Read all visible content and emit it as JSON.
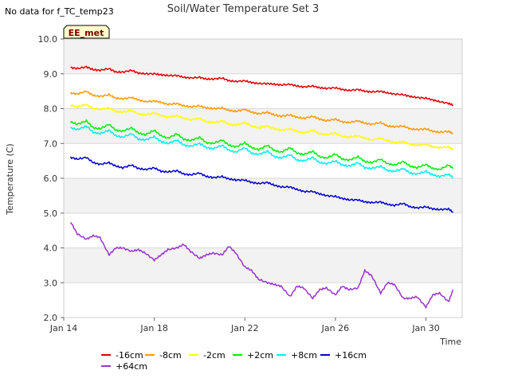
{
  "no_data_text": "No data for f_TC_temp23",
  "site_label": "EE_met",
  "colors": {
    "plot_bg_band": "#f2f2f2",
    "grid": "#d9d9d9",
    "site_tag_fill": "#ffffcc"
  },
  "chart_data": {
    "type": "line",
    "title": "Soil/Water Temperature Set 3",
    "xlabel": "Time",
    "ylabel": "Temperature (C)",
    "ylim": [
      2.0,
      10.0
    ],
    "yticks": [
      "2.0",
      "3.0",
      "4.0",
      "5.0",
      "6.0",
      "7.0",
      "8.0",
      "9.0",
      "10.0"
    ],
    "xlim": [
      "Jan 14",
      "Jan 31.6"
    ],
    "xticks": [
      "Jan 14",
      "Jan 18",
      "Jan 22",
      "Jan 26",
      "Jan 30"
    ],
    "grid": true,
    "legend_position": "bottom",
    "x_days": [
      14.3,
      14.6,
      15.0,
      15.3,
      15.6,
      16.0,
      16.3,
      16.6,
      17.0,
      17.3,
      17.6,
      18.0,
      18.3,
      18.6,
      19.0,
      19.3,
      19.6,
      20.0,
      20.3,
      20.6,
      21.0,
      21.3,
      21.6,
      22.0,
      22.3,
      22.6,
      23.0,
      23.3,
      23.6,
      24.0,
      24.3,
      24.6,
      25.0,
      25.3,
      25.6,
      26.0,
      26.3,
      26.6,
      27.0,
      27.3,
      27.6,
      28.0,
      28.3,
      28.6,
      29.0,
      29.3,
      29.6,
      30.0,
      30.3,
      30.6,
      31.0,
      31.2
    ],
    "series": [
      {
        "name": "-16cm",
        "color": "#dd0000",
        "values": [
          9.18,
          9.15,
          9.2,
          9.12,
          9.1,
          9.15,
          9.05,
          9.05,
          9.1,
          9.02,
          9.0,
          9.0,
          8.97,
          8.95,
          8.95,
          8.9,
          8.88,
          8.9,
          8.85,
          8.85,
          8.88,
          8.8,
          8.78,
          8.8,
          8.75,
          8.72,
          8.72,
          8.7,
          8.68,
          8.7,
          8.65,
          8.62,
          8.65,
          8.6,
          8.58,
          8.6,
          8.55,
          8.52,
          8.55,
          8.5,
          8.48,
          8.5,
          8.45,
          8.42,
          8.4,
          8.35,
          8.32,
          8.3,
          8.25,
          8.2,
          8.15,
          8.1
        ]
      },
      {
        "name": "-8cm",
        "color": "#ff9900",
        "values": [
          8.45,
          8.42,
          8.5,
          8.38,
          8.35,
          8.4,
          8.3,
          8.28,
          8.32,
          8.25,
          8.2,
          8.22,
          8.18,
          8.12,
          8.15,
          8.08,
          8.05,
          8.08,
          8.02,
          8.0,
          8.02,
          7.95,
          7.92,
          7.98,
          7.9,
          7.85,
          7.9,
          7.82,
          7.78,
          7.82,
          7.75,
          7.72,
          7.78,
          7.7,
          7.65,
          7.7,
          7.62,
          7.6,
          7.65,
          7.58,
          7.55,
          7.6,
          7.5,
          7.48,
          7.5,
          7.42,
          7.4,
          7.42,
          7.35,
          7.32,
          7.35,
          7.28
        ]
      },
      {
        "name": "-2cm",
        "color": "#ffff00",
        "values": [
          8.1,
          8.05,
          8.12,
          8.0,
          7.98,
          8.02,
          7.92,
          7.9,
          7.95,
          7.85,
          7.82,
          7.88,
          7.8,
          7.75,
          7.8,
          7.72,
          7.68,
          7.72,
          7.62,
          7.6,
          7.65,
          7.55,
          7.52,
          7.6,
          7.5,
          7.45,
          7.5,
          7.42,
          7.38,
          7.42,
          7.35,
          7.3,
          7.38,
          7.28,
          7.25,
          7.3,
          7.2,
          7.18,
          7.22,
          7.15,
          7.1,
          7.15,
          7.08,
          7.02,
          7.05,
          6.98,
          6.95,
          6.98,
          6.9,
          6.88,
          6.9,
          6.82
        ]
      },
      {
        "name": "+2cm",
        "color": "#00ee00",
        "values": [
          7.62,
          7.55,
          7.65,
          7.45,
          7.42,
          7.55,
          7.38,
          7.35,
          7.45,
          7.3,
          7.25,
          7.38,
          7.22,
          7.15,
          7.28,
          7.12,
          7.08,
          7.18,
          7.02,
          7.0,
          7.1,
          6.95,
          6.9,
          7.02,
          6.88,
          6.82,
          6.95,
          6.8,
          6.75,
          6.88,
          6.72,
          6.68,
          6.78,
          6.62,
          6.58,
          6.7,
          6.55,
          6.52,
          6.62,
          6.48,
          6.45,
          6.55,
          6.42,
          6.38,
          6.48,
          6.35,
          6.3,
          6.4,
          6.28,
          6.25,
          6.38,
          6.28
        ]
      },
      {
        "name": "+8cm",
        "color": "#00eeee",
        "values": [
          7.45,
          7.4,
          7.5,
          7.32,
          7.28,
          7.38,
          7.22,
          7.18,
          7.28,
          7.12,
          7.1,
          7.2,
          7.05,
          7.0,
          7.1,
          6.95,
          6.92,
          7.0,
          6.88,
          6.85,
          6.95,
          6.8,
          6.75,
          6.88,
          6.72,
          6.68,
          6.78,
          6.62,
          6.58,
          6.68,
          6.52,
          6.5,
          6.6,
          6.45,
          6.42,
          6.5,
          6.38,
          6.35,
          6.45,
          6.3,
          6.28,
          6.35,
          6.22,
          6.2,
          6.28,
          6.15,
          6.12,
          6.2,
          6.1,
          6.05,
          6.12,
          6.02
        ]
      },
      {
        "name": "+16cm",
        "color": "#0000cc",
        "values": [
          6.6,
          6.55,
          6.6,
          6.45,
          6.4,
          6.45,
          6.35,
          6.3,
          6.38,
          6.28,
          6.25,
          6.3,
          6.2,
          6.18,
          6.22,
          6.12,
          6.1,
          6.15,
          6.05,
          6.02,
          6.05,
          5.98,
          5.95,
          5.95,
          5.88,
          5.85,
          5.88,
          5.8,
          5.75,
          5.75,
          5.68,
          5.62,
          5.62,
          5.55,
          5.5,
          5.48,
          5.42,
          5.38,
          5.38,
          5.32,
          5.3,
          5.32,
          5.25,
          5.22,
          5.28,
          5.18,
          5.15,
          5.18,
          5.12,
          5.1,
          5.12,
          5.02
        ]
      },
      {
        "name": "+64cm",
        "color": "#9933cc",
        "values": [
          4.75,
          4.4,
          4.25,
          4.35,
          4.3,
          3.8,
          4.0,
          4.0,
          3.9,
          3.95,
          3.85,
          3.65,
          3.8,
          3.95,
          4.0,
          4.1,
          3.9,
          3.7,
          3.8,
          3.85,
          3.8,
          4.05,
          3.85,
          3.45,
          3.35,
          3.1,
          3.0,
          2.95,
          2.9,
          2.6,
          2.9,
          2.85,
          2.55,
          2.8,
          2.85,
          2.65,
          2.9,
          2.8,
          2.85,
          3.35,
          3.2,
          2.7,
          3.0,
          2.95,
          2.55,
          2.55,
          2.6,
          2.3,
          2.65,
          2.7,
          2.45,
          2.8
        ]
      }
    ]
  }
}
